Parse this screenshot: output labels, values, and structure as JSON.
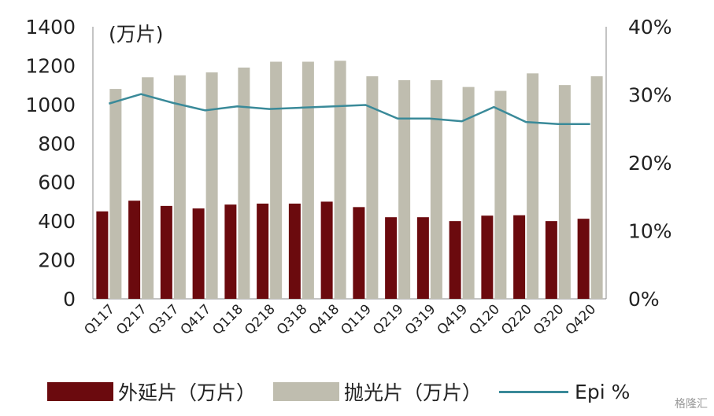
{
  "chart_data": {
    "type": "bar",
    "categories": [
      "Q117",
      "Q217",
      "Q317",
      "Q417",
      "Q118",
      "Q218",
      "Q318",
      "Q418",
      "Q119",
      "Q219",
      "Q319",
      "Q419",
      "Q120",
      "Q220",
      "Q320",
      "Q420"
    ],
    "unit_label": "(万片)",
    "y_left": {
      "range": [
        0,
        1400
      ],
      "ticks": [
        "0",
        "200",
        "400",
        "600",
        "800",
        "1000",
        "1200",
        "1400"
      ]
    },
    "y_right": {
      "range": [
        0,
        40
      ],
      "ticks": [
        "0%",
        "10%",
        "20%",
        "30%",
        "40%"
      ]
    },
    "series": [
      {
        "name": "外延片（万片）",
        "type": "bar",
        "axis": "left",
        "color": "#6b0a0e",
        "values": [
          450,
          505,
          478,
          465,
          485,
          490,
          490,
          500,
          472,
          420,
          420,
          400,
          428,
          430,
          400,
          412
        ]
      },
      {
        "name": "抛光片（万片）",
        "type": "bar",
        "axis": "left",
        "color": "#bfbdaf",
        "values": [
          1080,
          1140,
          1150,
          1165,
          1190,
          1220,
          1220,
          1225,
          1145,
          1125,
          1125,
          1090,
          1070,
          1160,
          1100,
          1145
        ]
      },
      {
        "name": "Epi %",
        "type": "line",
        "axis": "right",
        "color": "#3a8a99",
        "values": [
          28.7,
          30.1,
          28.8,
          27.7,
          28.3,
          27.9,
          28.1,
          28.3,
          28.5,
          26.5,
          26.5,
          26.1,
          28.2,
          26.0,
          25.7,
          25.7
        ]
      }
    ],
    "legend_position": "bottom",
    "grid": false
  },
  "watermark": "格隆汇"
}
